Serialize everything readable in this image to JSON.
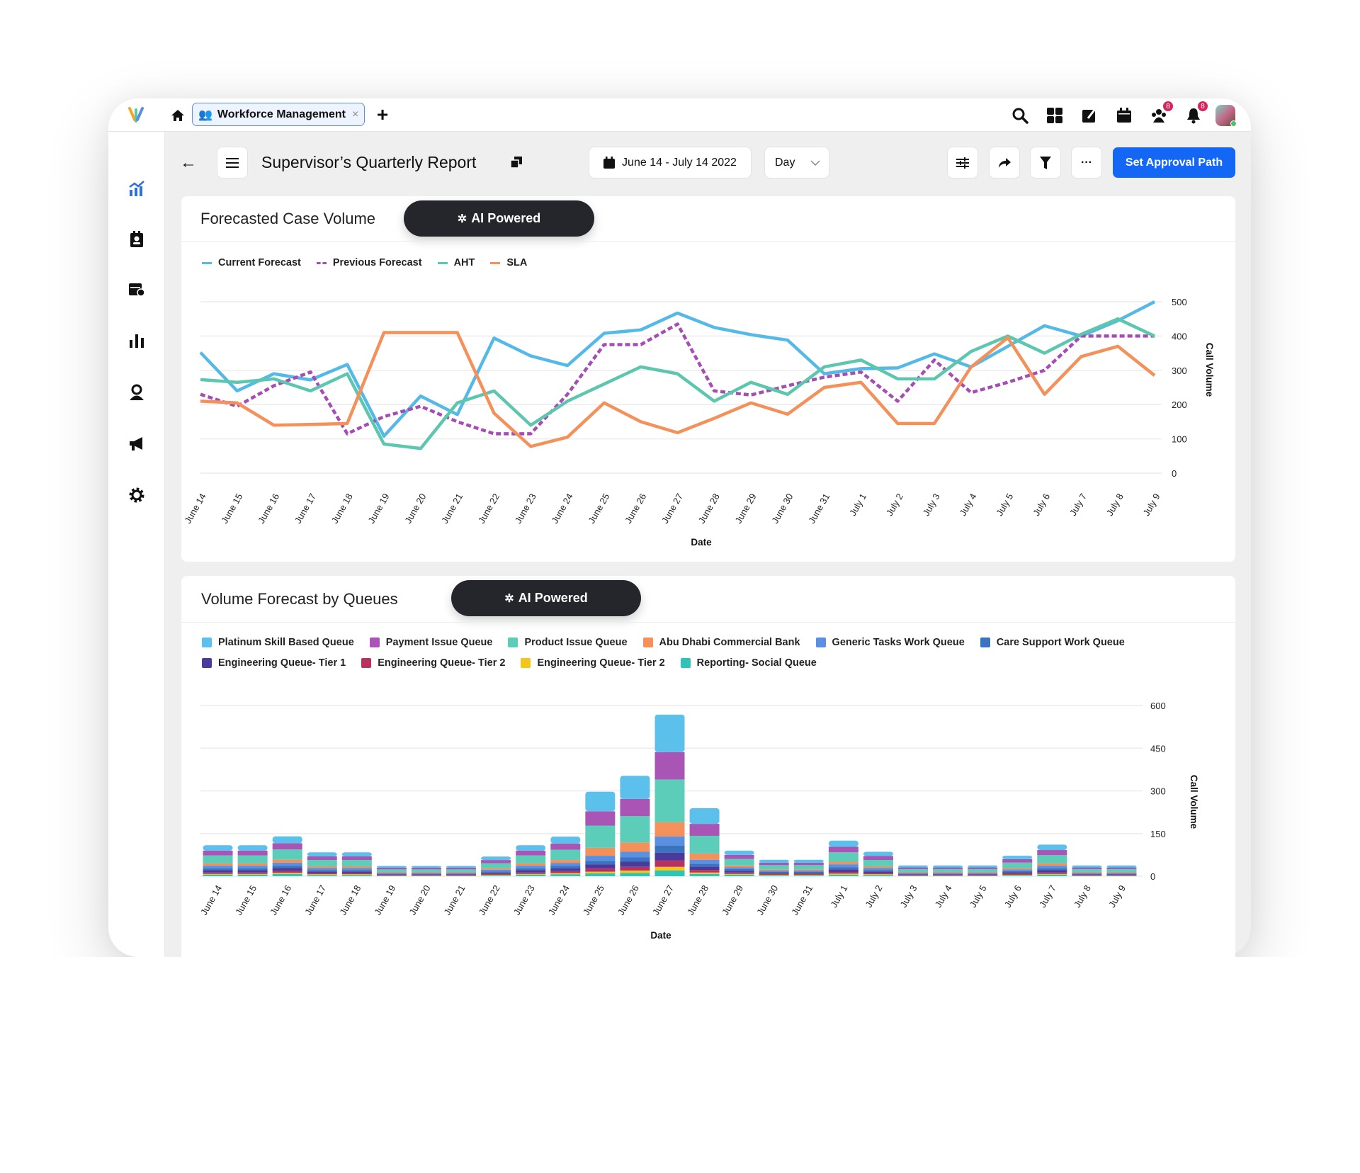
{
  "topbar": {
    "tab_label": "Workforce Management",
    "tab_close": "×",
    "new_tab": "+",
    "notifications": {
      "people_badge": "8",
      "bell_badge": "8"
    },
    "icons": [
      "logo-icon",
      "home-icon",
      "search-icon",
      "apps-grid-icon",
      "edit-icon",
      "calendar-icon",
      "team-icon",
      "bell-icon",
      "avatar"
    ]
  },
  "sidebar": {
    "items": [
      "analytics",
      "contacts",
      "schedule",
      "reports",
      "agent",
      "campaigns",
      "settings"
    ]
  },
  "header": {
    "back": "←",
    "title": "Supervisor’s Quarterly Report",
    "date_range": "June 14 - July 14 2022",
    "granularity": "Day",
    "approval_button": "Set Approval Path",
    "more": "···"
  },
  "colors": {
    "accent": "#1466f5",
    "current": "#55b9e8",
    "previous": "#a64db5",
    "aht": "#5cc6ae",
    "sla": "#f4905a"
  },
  "card1": {
    "title": "Forecasted Case Volume",
    "ai_label": "AI Powered"
  },
  "card2": {
    "title": "Volume Forecast by Queues",
    "ai_label": "AI Powered"
  },
  "chart_data": [
    {
      "type": "line",
      "xlabel": "Date",
      "ylabel": "Call Volume",
      "ylim": [
        0,
        500
      ],
      "yticks": [
        0,
        100,
        200,
        300,
        400,
        500
      ],
      "grid": true,
      "legend": "top-left",
      "categories": [
        "June 14",
        "June 15",
        "June 16",
        "June 17",
        "June 18",
        "June 19",
        "June 20",
        "June 21",
        "June 22",
        "June 23",
        "June 24",
        "June 25",
        "June 26",
        "June 27",
        "June 28",
        "June 29",
        "June 30",
        "June 31",
        "July 1",
        "July 2",
        "July 3",
        "July 4",
        "July 5",
        "July 6",
        "July 7",
        "July 8",
        "July 9"
      ],
      "series": [
        {
          "name": "Current Forecast",
          "color": "#55b9e8",
          "dashed": false,
          "values": [
            352,
            240,
            290,
            272,
            317,
            108,
            225,
            171,
            394,
            342,
            314,
            408,
            418,
            467,
            425,
            404,
            388,
            290,
            305,
            307,
            348,
            310,
            370,
            430,
            400,
            445,
            500
          ]
        },
        {
          "name": "Previous Forecast",
          "color": "#a64db5",
          "dashed": true,
          "values": [
            230,
            195,
            255,
            295,
            115,
            165,
            195,
            150,
            115,
            115,
            230,
            375,
            375,
            435,
            240,
            228,
            255,
            280,
            295,
            210,
            330,
            235,
            265,
            300,
            400,
            400,
            400
          ]
        },
        {
          "name": "AHT",
          "color": "#5cc6ae",
          "dashed": false,
          "values": [
            273,
            265,
            275,
            240,
            290,
            85,
            72,
            205,
            240,
            140,
            210,
            260,
            310,
            290,
            210,
            265,
            230,
            310,
            330,
            275,
            275,
            355,
            400,
            350,
            405,
            450,
            400
          ]
        },
        {
          "name": "SLA",
          "color": "#f4905a",
          "dashed": false,
          "values": [
            210,
            205,
            140,
            142,
            145,
            410,
            410,
            410,
            175,
            78,
            105,
            205,
            150,
            118,
            160,
            205,
            172,
            250,
            265,
            145,
            145,
            310,
            395,
            230,
            340,
            370,
            285
          ]
        }
      ]
    },
    {
      "type": "bar",
      "stacked": true,
      "xlabel": "Date",
      "ylabel": "Call Volume",
      "ylim": [
        0,
        600
      ],
      "yticks": [
        0,
        150,
        300,
        450,
        600
      ],
      "grid": true,
      "legend": "top-left",
      "categories": [
        "June 14",
        "June 15",
        "June 16",
        "June 17",
        "June 18",
        "June 19",
        "June 20",
        "June 21",
        "June 22",
        "June 23",
        "June 24",
        "June 25",
        "June 26",
        "June 27",
        "June 28",
        "June 29",
        "June 30",
        "June 31",
        "July 1",
        "July 2",
        "July 3",
        "July 4",
        "July 5",
        "July 6",
        "July 7",
        "July 8",
        "July 9"
      ],
      "series": [
        {
          "name": "Platinum Skill Based Queue",
          "color": "#5bc0eb",
          "values": [
            19,
            19,
            24,
            14,
            14,
            6,
            6,
            6,
            12,
            19,
            24,
            69,
            81,
            132,
            55,
            15,
            10,
            10,
            21,
            15,
            7,
            7,
            7,
            12,
            19,
            7,
            7
          ]
        },
        {
          "name": "Payment Issue Queue",
          "color": "#a855b5",
          "values": [
            17,
            17,
            22,
            13,
            13,
            6,
            6,
            6,
            11,
            17,
            22,
            50,
            61,
            96,
            42,
            14,
            9,
            9,
            20,
            14,
            6,
            6,
            6,
            12,
            18,
            6,
            6
          ]
        },
        {
          "name": "Product Issue Queue",
          "color": "#5ccdb9",
          "values": [
            28,
            28,
            36,
            22,
            22,
            9,
            9,
            9,
            18,
            28,
            36,
            78,
            92,
            150,
            62,
            23,
            15,
            15,
            33,
            22,
            10,
            10,
            10,
            19,
            29,
            10,
            10
          ]
        },
        {
          "name": "Abu Dhabi Commercial Bank",
          "color": "#f4905a",
          "values": [
            8,
            8,
            10,
            6,
            6,
            3,
            3,
            3,
            5,
            8,
            10,
            28,
            33,
            50,
            22,
            6,
            4,
            4,
            9,
            6,
            3,
            3,
            3,
            5,
            8,
            3,
            3
          ]
        },
        {
          "name": "Generic Tasks Work Queue",
          "color": "#5b8fe0",
          "values": [
            9,
            9,
            11,
            7,
            7,
            3,
            3,
            3,
            6,
            9,
            11,
            18,
            20,
            32,
            14,
            7,
            5,
            5,
            10,
            7,
            3,
            3,
            3,
            6,
            9,
            3,
            3
          ]
        },
        {
          "name": "Care Support Work Queue",
          "color": "#3a73c0",
          "values": [
            7,
            7,
            8,
            5,
            5,
            2,
            2,
            2,
            4,
            7,
            8,
            12,
            15,
            25,
            10,
            6,
            3,
            3,
            8,
            5,
            2,
            2,
            2,
            4,
            7,
            2,
            2
          ]
        },
        {
          "name": "Engineering Queue- Tier 1",
          "color": "#4b3a9b",
          "values": [
            8,
            8,
            10,
            6,
            6,
            3,
            3,
            3,
            5,
            8,
            10,
            15,
            18,
            28,
            12,
            6,
            4,
            4,
            9,
            6,
            3,
            3,
            3,
            5,
            8,
            3,
            3
          ]
        },
        {
          "name": "Engineering Queue- Tier 2",
          "color": "#b83260",
          "values": [
            5,
            5,
            7,
            4,
            4,
            2,
            2,
            2,
            3,
            5,
            7,
            11,
            13,
            22,
            9,
            5,
            3,
            3,
            6,
            4,
            2,
            2,
            2,
            4,
            5,
            2,
            2
          ]
        },
        {
          "name": "Engineering Queue- Tier 2",
          "color": "#f5c518",
          "values": [
            3,
            3,
            4,
            3,
            3,
            1,
            1,
            1,
            2,
            3,
            4,
            6,
            8,
            13,
            5,
            3,
            2,
            2,
            4,
            3,
            1,
            1,
            1,
            2,
            3,
            1,
            1
          ]
        },
        {
          "name": "Reporting- Social Queue",
          "color": "#2ec4b6",
          "values": [
            5,
            5,
            8,
            4,
            4,
            1,
            1,
            1,
            3,
            5,
            7,
            10,
            12,
            20,
            8,
            5,
            3,
            3,
            5,
            4,
            1,
            1,
            1,
            3,
            5,
            1,
            1
          ]
        }
      ]
    }
  ]
}
